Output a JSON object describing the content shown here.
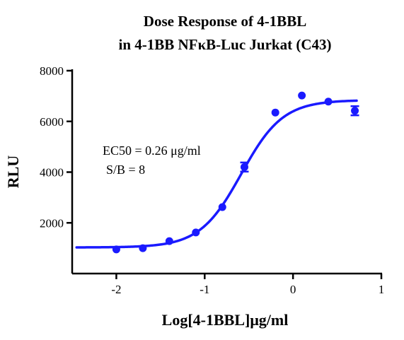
{
  "chart_data": {
    "type": "scatter",
    "title_lines": [
      "Dose Response of 4-1BBL",
      "in 4-1BB NFκB-Luc Jurkat (C43)"
    ],
    "xlabel": "Log[4-1BBL]μg/ml",
    "ylabel": "RLU",
    "xlim": [
      -2.5,
      1
    ],
    "ylim": [
      0,
      8000
    ],
    "xticks": [
      -2,
      -1,
      0,
      1
    ],
    "yticks": [
      2000,
      4000,
      6000,
      8000
    ],
    "xtick_labels": [
      "-2",
      "-1",
      "0",
      "1"
    ],
    "ytick_labels": [
      "2000",
      "4000",
      "6000",
      "8000"
    ],
    "grid": false,
    "color": "#1a1aff",
    "series": [
      {
        "x": [
          -2.0,
          -1.7,
          -1.4,
          -1.1,
          -0.8,
          -0.55,
          -0.2,
          0.1,
          0.4,
          0.7
        ],
        "y": [
          950,
          1000,
          1280,
          1620,
          2620,
          4200,
          6350,
          7020,
          6780,
          6420
        ],
        "error": [
          0,
          0,
          0,
          0,
          0,
          180,
          0,
          0,
          0,
          180
        ]
      }
    ],
    "fit": {
      "model": "4PL",
      "bottom": 1030,
      "top": 6840,
      "log_ec50": -0.585,
      "hill": 1.85
    },
    "annotations": [
      "EC50 = 0.26 μg/ml",
      "S/B = 8"
    ]
  }
}
